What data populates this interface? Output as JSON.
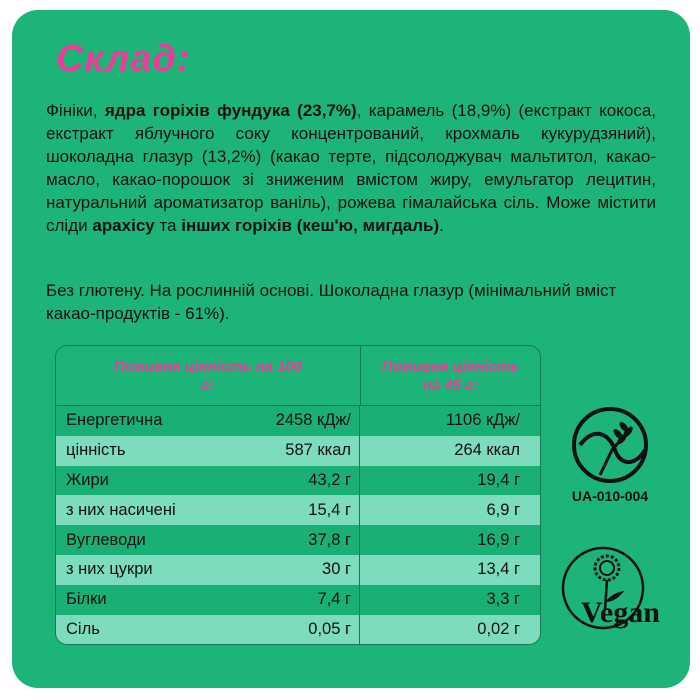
{
  "title": "Склад:",
  "ingredients": {
    "t1": "Фініки, ",
    "b1": "ядра горіхів фундука (23,7%)",
    "t2": ", карамель (18,9%) (екстракт кокоса, екстракт яблучного соку концентрований, крохмаль кукурудзяний), шоколадна глазур (13,2%) (какао терте, підсолоджувач мальтитол, какао-масло, какао-порошок зі зниженим вмістом жиру, емульгатор лецитин, натуральний ароматизатор ваніль), рожева гімалайська сіль. Може містити сліди ",
    "b2": "арахісу",
    "t3": " та ",
    "b3": "інших горіхів (кеш'ю, мигдаль)",
    "t4": "."
  },
  "notes": "Без глютену. На рослинній основі. Шоколадна глазур (мінімальний вміст какао-продуктів - 61%).",
  "table": {
    "header_100": "Поживна цінність на 100 г:",
    "header_45": "Поживна цінність на 45 г:",
    "rows": [
      {
        "label": "Енергетична",
        "v100": "2458 кДж/",
        "v45": "1106 кДж/"
      },
      {
        "label": "цінність",
        "v100": "587 ккал",
        "v45": "264 ккал"
      },
      {
        "label": "Жири",
        "v100": "43,2 г",
        "v45": "19,4 г"
      },
      {
        "label": "з них насичені",
        "v100": "15,4 г",
        "v45": "6,9 г"
      },
      {
        "label": "Вуглеводи",
        "v100": "37,8 г",
        "v45": "16,9 г"
      },
      {
        "label": "з них цукри",
        "v100": "30 г",
        "v45": "13,4 г"
      },
      {
        "label": "Білки",
        "v100": "7,4 г",
        "v45": "3,3 г"
      },
      {
        "label": "Сіль",
        "v100": "0,05 г",
        "v45": "0,02 г"
      }
    ]
  },
  "badges": {
    "gluten_free_icon": "crossed-grain-icon",
    "gluten_free_code": "UA-010-004",
    "vegan_icon": "vegan-sunflower-icon",
    "vegan_text": "Vegan"
  },
  "colors": {
    "background": "#1db47a",
    "accent": "#ec3c9a",
    "row_light": "#7ddcbd"
  }
}
